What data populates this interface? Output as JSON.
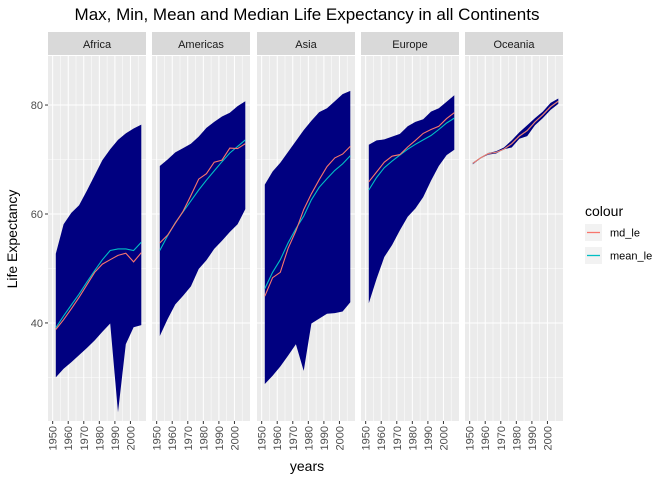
{
  "chart_data": {
    "type": "line",
    "title": "Max, Min, Mean and Median Life Expectancy in all Continents",
    "xlabel": "years",
    "ylabel": "Life Expectancy",
    "xlim": [
      1947,
      2010
    ],
    "ylim": [
      22,
      89
    ],
    "x_ticks": [
      1950,
      1960,
      1970,
      1980,
      1990,
      2000
    ],
    "y_ticks": [
      40,
      60,
      80
    ],
    "grid": true,
    "legend": {
      "title": "colour",
      "position": "right",
      "entries": [
        {
          "key": "md_le",
          "label": "md_le",
          "color": "#F8766D"
        },
        {
          "key": "mean_le",
          "label": "mean_le",
          "color": "#00BFC4"
        }
      ]
    },
    "ribbon_color": "#000080",
    "x": [
      1952,
      1957,
      1962,
      1967,
      1972,
      1977,
      1982,
      1987,
      1992,
      1997,
      2002,
      2007
    ],
    "panels": [
      {
        "name": "Africa",
        "max_le": [
          52.7,
          58.1,
          60.2,
          61.6,
          64.3,
          67.1,
          69.9,
          71.9,
          73.6,
          74.8,
          75.7,
          76.4
        ],
        "min_le": [
          30.0,
          31.6,
          32.8,
          34.1,
          35.4,
          36.8,
          38.4,
          39.9,
          23.6,
          36.1,
          39.2,
          39.6
        ],
        "mean_le": [
          39.1,
          41.3,
          43.3,
          45.3,
          47.5,
          49.6,
          51.6,
          53.3,
          53.6,
          53.6,
          53.3,
          54.8
        ],
        "md_le": [
          38.8,
          40.6,
          42.6,
          44.7,
          47.0,
          49.3,
          50.8,
          51.6,
          52.4,
          52.8,
          51.2,
          52.9
        ]
      },
      {
        "name": "Americas",
        "max_le": [
          68.8,
          70.0,
          71.3,
          72.1,
          72.9,
          74.2,
          75.8,
          76.9,
          77.9,
          78.6,
          79.8,
          80.7
        ],
        "min_le": [
          37.6,
          40.7,
          43.4,
          45.0,
          46.7,
          49.9,
          51.5,
          53.6,
          55.1,
          56.7,
          58.1,
          60.9
        ],
        "mean_le": [
          53.3,
          56.0,
          58.4,
          60.4,
          62.4,
          64.4,
          66.2,
          67.9,
          69.6,
          71.2,
          72.4,
          73.6
        ],
        "md_le": [
          54.7,
          56.1,
          58.3,
          60.5,
          63.4,
          66.4,
          67.4,
          69.5,
          69.9,
          72.1,
          72.0,
          72.9
        ]
      },
      {
        "name": "Asia",
        "max_le": [
          65.4,
          67.8,
          69.4,
          71.4,
          73.4,
          75.4,
          77.1,
          78.7,
          79.4,
          80.7,
          82.0,
          82.6
        ],
        "min_le": [
          28.8,
          30.3,
          32.0,
          34.0,
          36.1,
          31.2,
          39.9,
          40.8,
          41.7,
          41.8,
          42.1,
          43.8
        ],
        "mean_le": [
          46.3,
          49.3,
          51.6,
          54.7,
          57.3,
          59.6,
          62.6,
          64.9,
          66.5,
          68.0,
          69.2,
          70.7
        ],
        "md_le": [
          44.9,
          48.3,
          49.3,
          53.7,
          56.9,
          60.8,
          63.7,
          66.3,
          68.7,
          70.3,
          71.0,
          72.4
        ]
      },
      {
        "name": "Europe",
        "max_le": [
          72.7,
          73.5,
          73.7,
          74.2,
          74.7,
          76.1,
          76.9,
          77.4,
          78.8,
          79.4,
          80.6,
          81.8
        ],
        "min_le": [
          43.6,
          48.1,
          52.1,
          54.3,
          57.0,
          59.5,
          61.0,
          63.1,
          66.1,
          68.8,
          70.8,
          71.8
        ],
        "mean_le": [
          64.4,
          66.7,
          68.5,
          69.7,
          70.8,
          71.9,
          72.8,
          73.6,
          74.4,
          75.5,
          76.7,
          77.6
        ],
        "md_le": [
          65.9,
          67.7,
          69.5,
          70.6,
          70.9,
          72.3,
          73.5,
          74.8,
          75.5,
          76.1,
          77.5,
          78.6
        ]
      },
      {
        "name": "Oceania",
        "max_le": [
          69.4,
          70.3,
          71.2,
          71.5,
          72.2,
          73.5,
          75.0,
          76.3,
          77.6,
          78.8,
          80.4,
          81.2
        ],
        "min_le": [
          69.1,
          70.2,
          70.9,
          71.1,
          71.9,
          72.2,
          73.8,
          74.3,
          76.3,
          77.6,
          79.1,
          80.2
        ],
        "mean_le": [
          69.3,
          70.3,
          71.1,
          71.3,
          71.9,
          72.9,
          74.3,
          75.3,
          76.9,
          78.2,
          79.7,
          80.7
        ],
        "md_le": [
          69.3,
          70.3,
          71.1,
          71.3,
          71.9,
          72.9,
          74.3,
          75.3,
          76.9,
          78.2,
          79.7,
          80.7
        ]
      }
    ]
  }
}
